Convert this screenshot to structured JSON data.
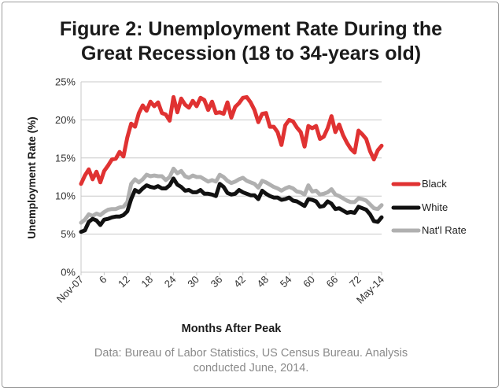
{
  "chart_data": {
    "type": "line",
    "title": "Figure 2: Unemployment Rate During the Great Recession (18 to 34-years old)",
    "title_lines": [
      "Figure 2: Unemployment Rate During the",
      "Great Recession (18 to 34-years old)"
    ],
    "xlabel": "Months After Peak",
    "ylabel": "Unemployment Rate (%)",
    "x_tick_labels": [
      "Nov-07",
      "6",
      "12",
      "18",
      "24",
      "30",
      "36",
      "42",
      "48",
      "54",
      "60",
      "66",
      "72",
      "May-14"
    ],
    "y_tick_labels": [
      "0%",
      "5%",
      "10%",
      "15%",
      "20%",
      "25%"
    ],
    "ylim": [
      0,
      25
    ],
    "xlim": [
      0,
      78
    ],
    "grid": "horizontal",
    "legend_position": "right",
    "source": "Data: Bureau of Labor Statistics, US Census Bureau. Analysis conducted June, 2014.",
    "source_lines": [
      "Data: Bureau of Labor Statistics, US Census Bureau. Analysis",
      "conducted June, 2014."
    ],
    "x": [
      0,
      1,
      2,
      3,
      4,
      5,
      6,
      7,
      8,
      9,
      10,
      11,
      12,
      13,
      14,
      15,
      16,
      17,
      18,
      19,
      20,
      21,
      22,
      23,
      24,
      25,
      26,
      27,
      28,
      29,
      30,
      31,
      32,
      33,
      34,
      35,
      36,
      37,
      38,
      39,
      40,
      41,
      42,
      43,
      44,
      45,
      46,
      47,
      48,
      49,
      50,
      51,
      52,
      53,
      54,
      55,
      56,
      57,
      58,
      59,
      60,
      61,
      62,
      63,
      64,
      65,
      66,
      67,
      68,
      69,
      70,
      71,
      72,
      73,
      74,
      75,
      76,
      77,
      78
    ],
    "series": [
      {
        "name": "Black",
        "color": "#e03232",
        "values": [
          11.6,
          12.7,
          13.5,
          12.2,
          13.2,
          11.8,
          13.3,
          14.0,
          14.8,
          14.9,
          15.8,
          15.2,
          17.7,
          19.5,
          19.1,
          20.9,
          21.9,
          21.2,
          22.4,
          21.8,
          22.3,
          20.9,
          20.7,
          19.9,
          23.0,
          21.0,
          22.8,
          22.0,
          21.6,
          22.5,
          21.8,
          22.9,
          22.6,
          21.3,
          22.4,
          20.9,
          21.0,
          20.8,
          22.3,
          20.3,
          21.7,
          22.2,
          22.9,
          23.0,
          22.3,
          21.3,
          19.7,
          20.8,
          20.9,
          19.1,
          19.1,
          18.4,
          16.7,
          19.3,
          20.0,
          19.8,
          19.0,
          18.4,
          16.5,
          19.2,
          18.9,
          19.2,
          17.5,
          17.8,
          18.9,
          20.5,
          18.4,
          19.4,
          18.0,
          17.0,
          16.2,
          15.7,
          18.6,
          18.1,
          17.5,
          15.9,
          14.8,
          16.0,
          16.6
        ]
      },
      {
        "name": "White",
        "color": "#111111",
        "values": [
          5.3,
          5.5,
          6.6,
          7.0,
          6.8,
          6.2,
          6.9,
          7.0,
          7.2,
          7.3,
          7.3,
          7.5,
          8.0,
          9.6,
          10.8,
          10.5,
          11.0,
          11.4,
          11.2,
          11.1,
          11.3,
          11.0,
          11.0,
          11.4,
          12.3,
          11.5,
          11.2,
          10.7,
          10.8,
          10.5,
          10.5,
          10.8,
          10.3,
          10.3,
          10.2,
          10.0,
          11.6,
          11.2,
          10.4,
          10.2,
          10.3,
          10.8,
          10.5,
          10.3,
          10.1,
          10.1,
          9.6,
          10.7,
          10.3,
          10.0,
          9.8,
          9.8,
          9.5,
          9.6,
          9.8,
          9.4,
          9.3,
          9.0,
          8.7,
          9.6,
          9.5,
          9.3,
          8.6,
          8.7,
          9.3,
          9.0,
          8.3,
          8.4,
          8.1,
          7.8,
          7.9,
          7.8,
          8.6,
          8.4,
          8.2,
          7.6,
          6.7,
          6.6,
          7.2
        ]
      },
      {
        "name": "Nat'l Rate",
        "color": "#b0b0b0",
        "values": [
          6.5,
          6.9,
          7.6,
          7.4,
          7.7,
          7.5,
          7.9,
          8.2,
          8.3,
          8.3,
          8.5,
          8.6,
          9.2,
          11.6,
          12.2,
          11.8,
          12.2,
          12.8,
          12.6,
          12.7,
          12.6,
          12.6,
          12.1,
          12.5,
          13.6,
          13.0,
          13.3,
          12.6,
          12.4,
          12.7,
          12.5,
          12.5,
          12.2,
          11.9,
          12.1,
          11.9,
          12.8,
          12.5,
          12.0,
          11.7,
          11.9,
          12.2,
          12.4,
          12.0,
          11.8,
          11.6,
          11.1,
          12.0,
          11.8,
          11.5,
          11.2,
          11.0,
          10.7,
          11.0,
          11.2,
          11.0,
          10.6,
          10.5,
          10.2,
          11.4,
          10.6,
          10.7,
          10.2,
          10.3,
          10.5,
          10.9,
          10.2,
          10.0,
          9.7,
          9.4,
          9.2,
          9.2,
          9.7,
          9.6,
          9.4,
          8.9,
          8.4,
          8.3,
          8.8
        ]
      }
    ]
  }
}
